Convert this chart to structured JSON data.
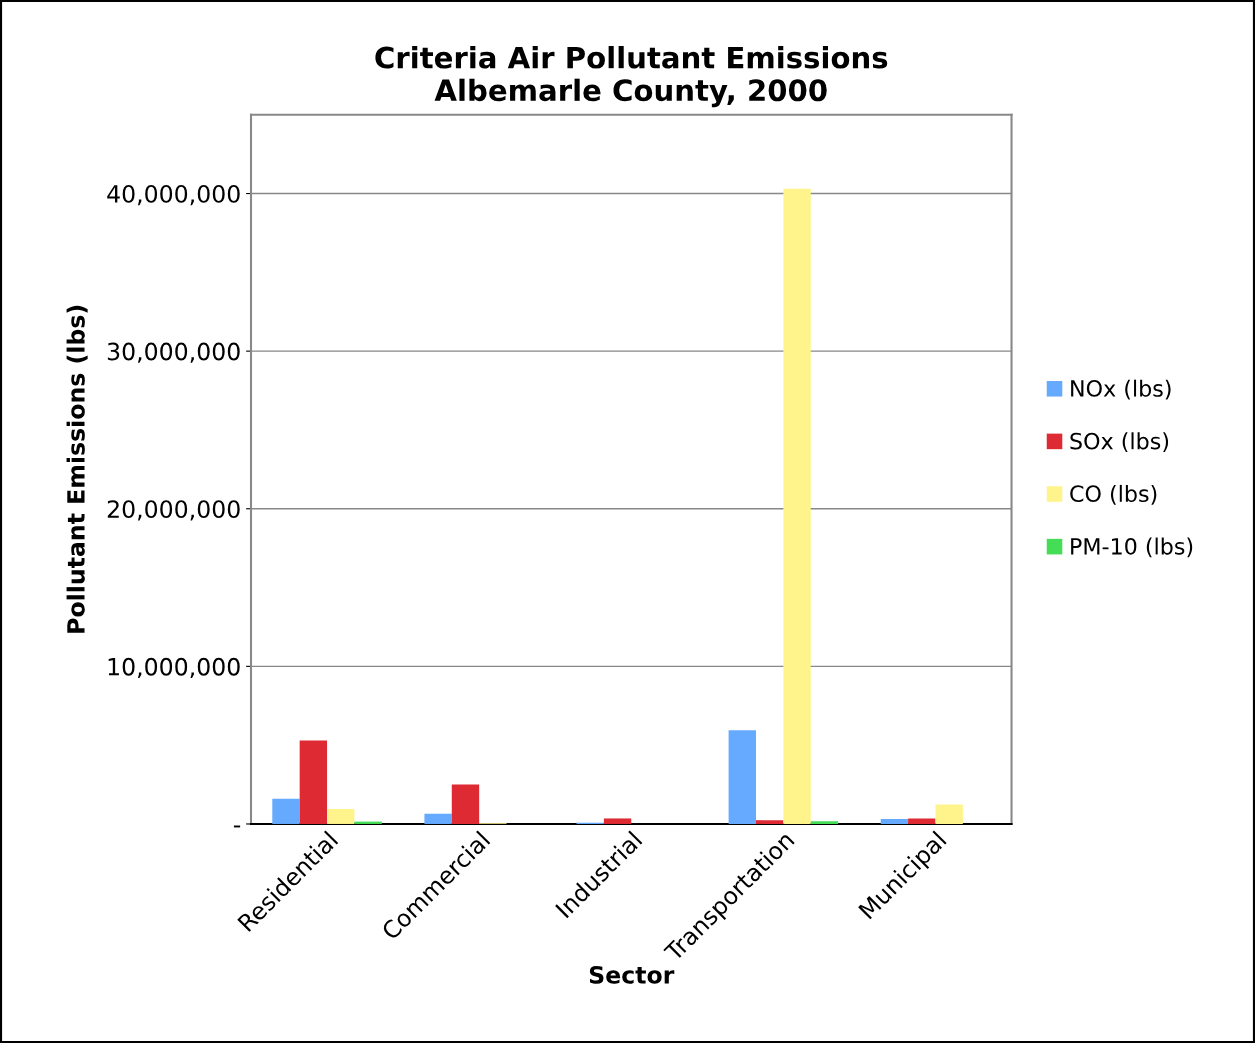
{
  "chart_data": {
    "type": "bar",
    "title": "Criteria Air Pollutant Emissions\nAlbemarle County, 2000",
    "xlabel": "Sector",
    "ylabel": "Pollutant Emissions (lbs)",
    "categories": [
      "Residential",
      "Commercial",
      "Industrial",
      "Transportation",
      "Municipal"
    ],
    "series": [
      {
        "name": "NOx (lbs)",
        "color": "#66aaff",
        "values": [
          1600000,
          650000,
          80000,
          5950000,
          320000
        ]
      },
      {
        "name": "SOx (lbs)",
        "color": "#dd2a33",
        "values": [
          5300000,
          2500000,
          350000,
          240000,
          340000
        ]
      },
      {
        "name": "CO (lbs)",
        "color": "#fff48c",
        "values": [
          950000,
          50000,
          0,
          40300000,
          1230000
        ]
      },
      {
        "name": "PM-10 (lbs)",
        "color": "#44dd55",
        "values": [
          150000,
          null,
          0,
          170000,
          0
        ]
      }
    ],
    "ylim": [
      0,
      45000000
    ],
    "yticks": [
      {
        "value": 0,
        "label": "-"
      },
      {
        "value": 10000000,
        "label": "10,000,000"
      },
      {
        "value": 20000000,
        "label": "20,000,000"
      },
      {
        "value": 30000000,
        "label": "30,000,000"
      },
      {
        "value": 40000000,
        "label": "40,000,000"
      }
    ],
    "grid": "y",
    "legend": "right"
  }
}
